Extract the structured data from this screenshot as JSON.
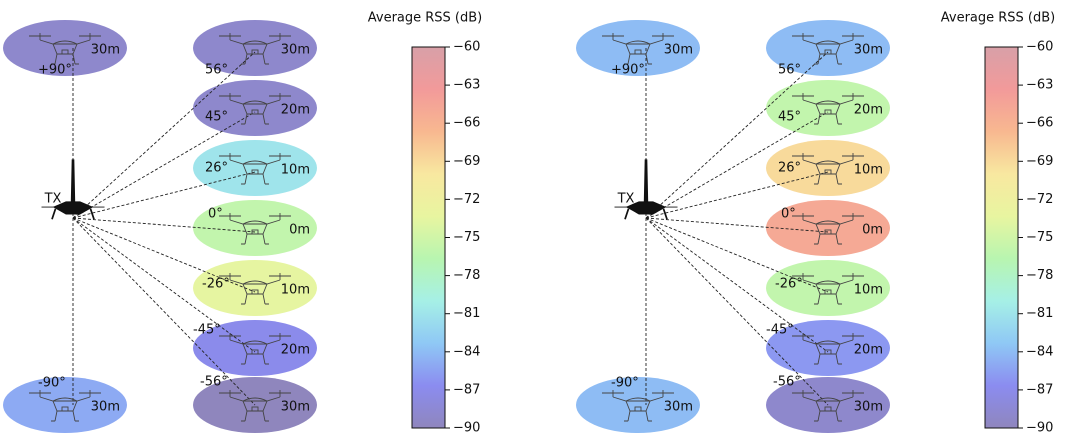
{
  "colorbar": {
    "title": "Average RSS (dB)",
    "lim": [
      -90,
      -60
    ],
    "colormap": [
      "#8f86bd",
      "#8b8cf0",
      "#8fc8f5",
      "#a6f0e6",
      "#b8f5b0",
      "#e8f5a0",
      "#f8e8a0",
      "#f8b890",
      "#f29a9a",
      "#d8a0a8"
    ],
    "ticks": [
      {
        "value": -60,
        "label": "−60"
      },
      {
        "value": -63,
        "label": "−63"
      },
      {
        "value": -66,
        "label": "−66"
      },
      {
        "value": -69,
        "label": "−69"
      },
      {
        "value": -72,
        "label": "−72"
      },
      {
        "value": -75,
        "label": "−75"
      },
      {
        "value": -78,
        "label": "−78"
      },
      {
        "value": -81,
        "label": "−81"
      },
      {
        "value": -84,
        "label": "−84"
      },
      {
        "value": -87,
        "label": "−87"
      },
      {
        "value": -90,
        "label": "−90"
      }
    ]
  },
  "panels": [
    {
      "tx_label": "TX",
      "nodes": [
        {
          "angle": "+90°",
          "distance": "30m",
          "rss": -89
        },
        {
          "angle": "56°",
          "distance": "30m",
          "rss": -89
        },
        {
          "angle": "45°",
          "distance": "20m",
          "rss": -89
        },
        {
          "angle": "26°",
          "distance": "10m",
          "rss": -81
        },
        {
          "angle": "0°",
          "distance": "0m",
          "rss": -76
        },
        {
          "angle": "-26°",
          "distance": "10m",
          "rss": -73.5
        },
        {
          "angle": "-45°",
          "distance": "20m",
          "rss": -87
        },
        {
          "angle": "-90°",
          "distance": "30m",
          "rss": -85
        },
        {
          "angle": "-56°",
          "distance": "30m",
          "rss": -90
        }
      ]
    },
    {
      "tx_label": "TX",
      "nodes": [
        {
          "angle": "+90°",
          "distance": "30m",
          "rss": -84
        },
        {
          "angle": "56°",
          "distance": "30m",
          "rss": -84
        },
        {
          "angle": "45°",
          "distance": "20m",
          "rss": -76
        },
        {
          "angle": "26°",
          "distance": "10m",
          "rss": -69
        },
        {
          "angle": "0°",
          "distance": "0m",
          "rss": -65
        },
        {
          "angle": "-26°",
          "distance": "10m",
          "rss": -76
        },
        {
          "angle": "-45°",
          "distance": "20m",
          "rss": -86
        },
        {
          "angle": "-90°",
          "distance": "30m",
          "rss": -84
        },
        {
          "angle": "-56°",
          "distance": "30m",
          "rss": -89
        }
      ]
    }
  ]
}
